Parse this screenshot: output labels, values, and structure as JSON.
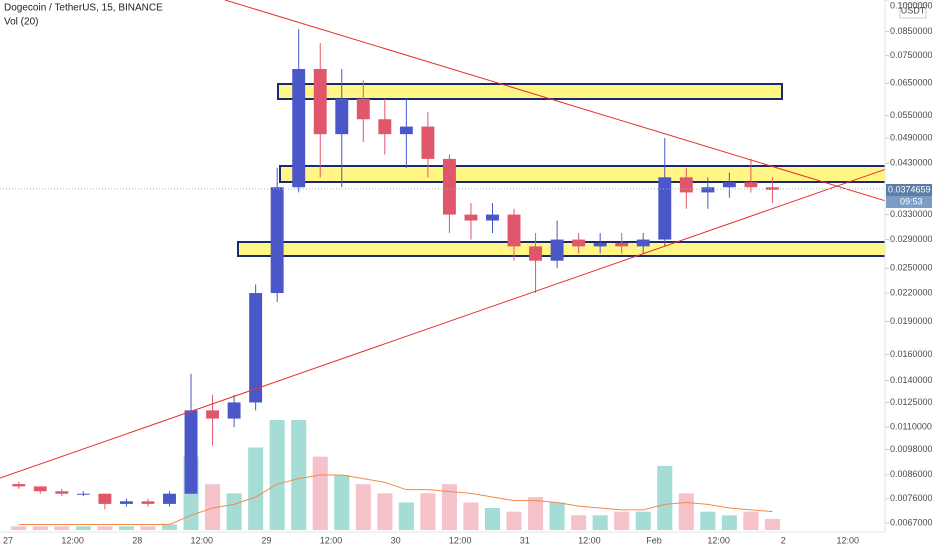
{
  "chart_data": {
    "type": "candlestick",
    "title": "Dogecoin / TetherUS, 15, BINANCE",
    "subtitle": "Vol (20)",
    "y_unit": "USDT",
    "log_scale": true,
    "grid": false,
    "up_color": "#4b57c8",
    "down_color": "#e0566a",
    "volume_up_color": "#8fd3cc",
    "volume_down_color": "#f3b3bd",
    "volume_ma_color": "#f28a4a",
    "ylim": [
      0.0064,
      0.1
    ],
    "yticks": [
      {
        "value": 0.1,
        "label": "0.1000000"
      },
      {
        "value": 0.085,
        "label": "0.0850000"
      },
      {
        "value": 0.075,
        "label": "0.0750000"
      },
      {
        "value": 0.065,
        "label": "0.0650000"
      },
      {
        "value": 0.055,
        "label": "0.0550000"
      },
      {
        "value": 0.049,
        "label": "0.0490000"
      },
      {
        "value": 0.043,
        "label": "0.0430000"
      },
      {
        "value": 0.033,
        "label": "0.0330000"
      },
      {
        "value": 0.029,
        "label": "0.0290000"
      },
      {
        "value": 0.025,
        "label": "0.0250000"
      },
      {
        "value": 0.022,
        "label": "0.0220000"
      },
      {
        "value": 0.019,
        "label": "0.0190000"
      },
      {
        "value": 0.016,
        "label": "0.0160000"
      },
      {
        "value": 0.014,
        "label": "0.0140000"
      },
      {
        "value": 0.0125,
        "label": "0.0125000"
      },
      {
        "value": 0.011,
        "label": "0.0110000"
      },
      {
        "value": 0.0098,
        "label": "0.0098000"
      },
      {
        "value": 0.0086,
        "label": "0.0086000"
      },
      {
        "value": 0.0076,
        "label": "0.0076000"
      },
      {
        "value": 0.0067,
        "label": "0.0067000"
      }
    ],
    "last_price": 0.0374659,
    "countdown": "09:53",
    "x_labels": [
      "27",
      "12:00",
      "28",
      "12:00",
      "29",
      "12:00",
      "30",
      "12:00",
      "31",
      "12:00",
      "Feb",
      "12:00",
      "2",
      "12:00"
    ],
    "candles": [
      [
        0.0082,
        0.0083,
        0.008,
        0.0081
      ],
      [
        0.0081,
        0.0081,
        0.0078,
        0.0079
      ],
      [
        0.0079,
        0.008,
        0.0077,
        0.0078
      ],
      [
        0.0078,
        0.0079,
        0.0077,
        0.0078
      ],
      [
        0.0078,
        0.0078,
        0.0072,
        0.0074
      ],
      [
        0.0074,
        0.0076,
        0.0073,
        0.0075
      ],
      [
        0.0075,
        0.0076,
        0.0073,
        0.0074
      ],
      [
        0.0074,
        0.0079,
        0.0073,
        0.0078
      ],
      [
        0.0078,
        0.0145,
        0.0078,
        0.012
      ],
      [
        0.012,
        0.013,
        0.01,
        0.0115
      ],
      [
        0.0115,
        0.013,
        0.011,
        0.0125
      ],
      [
        0.0125,
        0.023,
        0.012,
        0.022
      ],
      [
        0.022,
        0.042,
        0.021,
        0.038
      ],
      [
        0.038,
        0.086,
        0.037,
        0.07
      ],
      [
        0.07,
        0.08,
        0.04,
        0.05
      ],
      [
        0.05,
        0.07,
        0.038,
        0.06
      ],
      [
        0.06,
        0.066,
        0.048,
        0.054
      ],
      [
        0.054,
        0.06,
        0.045,
        0.05
      ],
      [
        0.05,
        0.06,
        0.042,
        0.052
      ],
      [
        0.052,
        0.056,
        0.04,
        0.044
      ],
      [
        0.044,
        0.045,
        0.03,
        0.033
      ],
      [
        0.033,
        0.035,
        0.029,
        0.032
      ],
      [
        0.032,
        0.035,
        0.03,
        0.033
      ],
      [
        0.033,
        0.034,
        0.026,
        0.028
      ],
      [
        0.028,
        0.03,
        0.022,
        0.026
      ],
      [
        0.026,
        0.032,
        0.025,
        0.029
      ],
      [
        0.029,
        0.03,
        0.027,
        0.028
      ],
      [
        0.028,
        0.03,
        0.027,
        0.0285
      ],
      [
        0.0285,
        0.03,
        0.027,
        0.028
      ],
      [
        0.028,
        0.03,
        0.027,
        0.029
      ],
      [
        0.029,
        0.049,
        0.028,
        0.04
      ],
      [
        0.04,
        0.042,
        0.034,
        0.037
      ],
      [
        0.037,
        0.04,
        0.034,
        0.038
      ],
      [
        0.038,
        0.041,
        0.036,
        0.039
      ],
      [
        0.039,
        0.044,
        0.037,
        0.038
      ],
      [
        0.038,
        0.04,
        0.035,
        0.0375
      ]
    ],
    "volume": [
      2,
      2,
      2,
      2,
      2,
      2,
      2,
      3,
      40,
      25,
      20,
      45,
      60,
      60,
      40,
      30,
      25,
      20,
      15,
      20,
      25,
      15,
      12,
      10,
      18,
      15,
      8,
      8,
      10,
      10,
      35,
      20,
      10,
      8,
      10,
      6
    ],
    "volume_ma": [
      3,
      3,
      3,
      3,
      3,
      3,
      3,
      3,
      8,
      12,
      14,
      18,
      25,
      28,
      30,
      30,
      28,
      26,
      22,
      22,
      21,
      20,
      18,
      16,
      16,
      15,
      13,
      12,
      11,
      11,
      14,
      15,
      14,
      12,
      11,
      10
    ]
  }
}
